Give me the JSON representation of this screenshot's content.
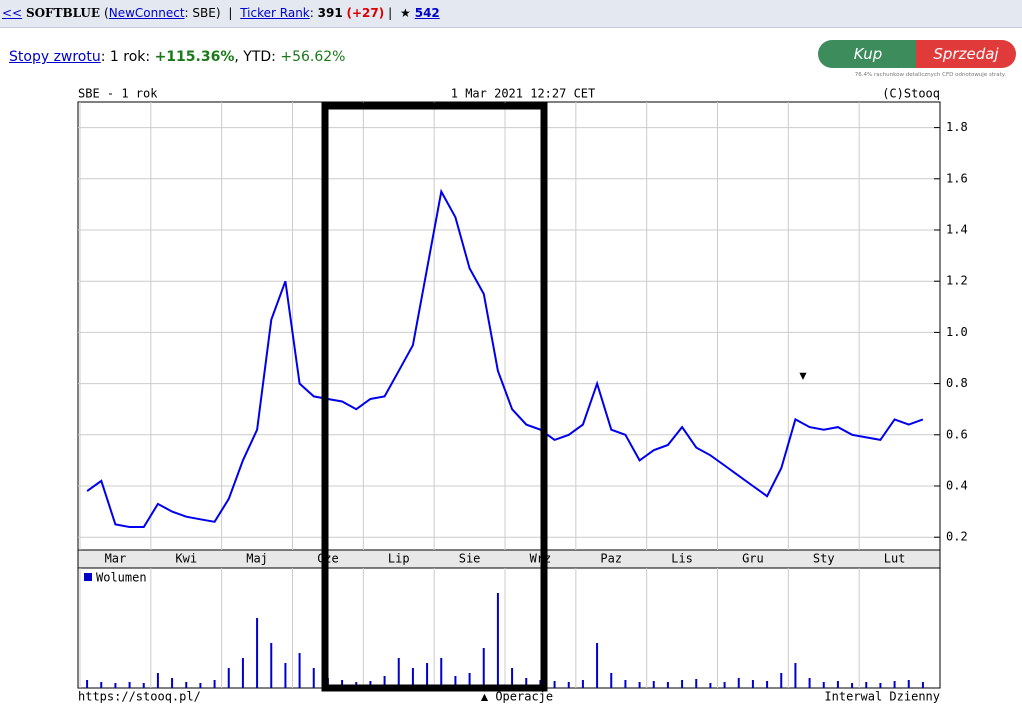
{
  "header": {
    "back": "<<",
    "symbol": "SOFTBLUE",
    "open": "(",
    "market": "NewConnect",
    "rest": ": SBE)",
    "sep1": "|",
    "rank_label": "Ticker Rank",
    "rank_colon": ":",
    "rank": "391",
    "rank_change": "(+27)",
    "sep2": "|",
    "star": "★",
    "star_count": "542"
  },
  "returns": {
    "label": "Stopy zwrotu",
    "period": ": 1 rok:",
    "year": "+115.36%",
    "ytd_label": ", YTD:",
    "ytd": "+56.62%"
  },
  "buttons": {
    "buy": "Kup",
    "sell": "Sprzedaj",
    "disclaimer": "76.4% rachunków detalicznych CFD odnotowuje straty."
  },
  "chart_data": {
    "type": "line",
    "title": "SBE - 1 rok",
    "subtitle": "1 Mar 2021 12:27 CET",
    "credit": "(C)Stooq",
    "categories": [
      null,
      null,
      "Mar",
      null,
      null,
      null,
      null,
      "Kwi",
      null,
      null,
      null,
      null,
      "Maj",
      null,
      null,
      null,
      null,
      "Cze",
      null,
      null,
      null,
      null,
      "Lip",
      null,
      null,
      null,
      null,
      "Sie",
      null,
      null,
      null,
      null,
      "Wrz",
      null,
      null,
      null,
      null,
      "Paz",
      null,
      null,
      null,
      null,
      "Lis",
      null,
      null,
      null,
      null,
      "Gru",
      null,
      null,
      null,
      null,
      "Sty",
      null,
      null,
      null,
      null,
      "Lut",
      null,
      null
    ],
    "values": [
      0.38,
      0.42,
      0.25,
      0.24,
      0.24,
      0.33,
      0.3,
      0.28,
      0.27,
      0.26,
      0.35,
      0.5,
      0.62,
      1.05,
      1.2,
      0.8,
      0.75,
      0.74,
      0.73,
      0.7,
      0.74,
      0.75,
      0.85,
      0.95,
      1.25,
      1.55,
      1.45,
      1.25,
      1.15,
      0.85,
      0.7,
      0.64,
      0.62,
      0.58,
      0.6,
      0.64,
      0.8,
      0.62,
      0.6,
      0.5,
      0.54,
      0.56,
      0.63,
      0.55,
      0.52,
      0.48,
      0.44,
      0.4,
      0.36,
      0.47,
      0.66,
      0.63,
      0.62,
      0.63,
      0.6,
      0.59,
      0.58,
      0.66,
      0.64,
      0.66
    ],
    "color": "#0000ee",
    "ylim": [
      0.15,
      1.9
    ],
    "yticks": [
      0.2,
      0.4,
      0.6,
      0.8,
      {
        "value": 1,
        "label": "1.0"
      },
      1.2,
      1.4,
      1.6,
      1.8
    ],
    "grid": true,
    "volume": {
      "name": "Wolumen",
      "color": "#0000cc",
      "ylim": [
        0,
        100
      ],
      "values": [
        8,
        6,
        5,
        6,
        5,
        15,
        10,
        6,
        5,
        8,
        20,
        30,
        70,
        45,
        25,
        35,
        20,
        10,
        8,
        6,
        7,
        12,
        30,
        20,
        25,
        30,
        12,
        15,
        40,
        95,
        20,
        10,
        8,
        7,
        6,
        8,
        45,
        15,
        8,
        6,
        7,
        6,
        8,
        9,
        5,
        6,
        10,
        8,
        7,
        15,
        25,
        10,
        6,
        7,
        5,
        6,
        5,
        7,
        8,
        6
      ]
    },
    "annotation": "▼",
    "footer_left": "https://stooq.pl/",
    "footer_center": "▲ Operacje",
    "footer_right": "Interwal Dzienny"
  }
}
